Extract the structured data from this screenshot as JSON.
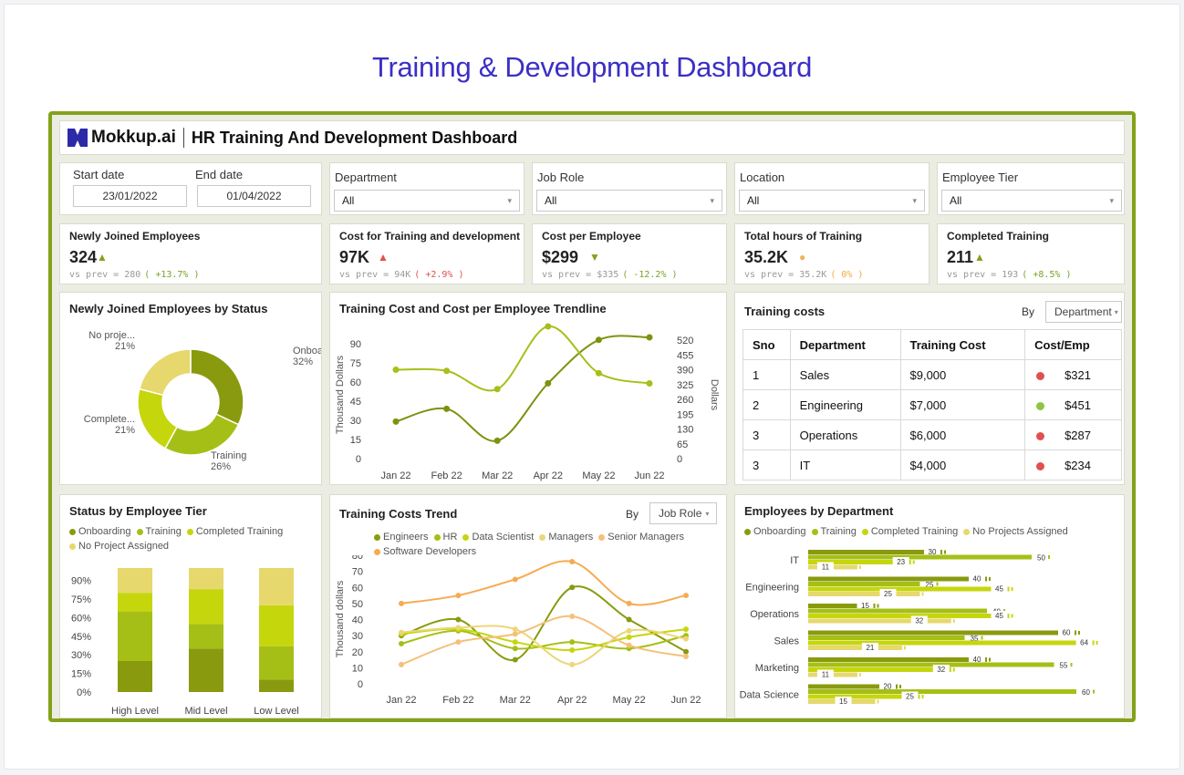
{
  "page_title": "Training & Development Dashboard",
  "header": {
    "brand": "Mokkup.ai",
    "title": "HR Training And Development Dashboard"
  },
  "filters": {
    "start_label": "Start date",
    "start_value": "23/01/2022",
    "end_label": "End date",
    "end_value": "01/04/2022",
    "department_label": "Department",
    "department_value": "All",
    "jobrole_label": "Job Role",
    "jobrole_value": "All",
    "location_label": "Location",
    "location_value": "All",
    "tier_label": "Employee Tier",
    "tier_value": "All"
  },
  "kpis": [
    {
      "title": "Newly Joined Employees",
      "value": "324",
      "indicator": "▲",
      "prev_label": "vs prev = ",
      "prev_value": "280",
      "change": "( +13.7% )",
      "ind_color": "#84a11a",
      "change_color": "#7aa323"
    },
    {
      "title": "Cost for Training and development",
      "value": "97K",
      "indicator": "▲",
      "prev_label": "vs prev = ",
      "prev_value": "94K",
      "change": "( +2.9% )",
      "ind_color": "#e05050",
      "change_color": "#e05050"
    },
    {
      "title": "Cost per Employee",
      "value": "$299",
      "indicator": "▼",
      "prev_label": "vs prev = ",
      "prev_value": "$335",
      "change": "( -12.2% )",
      "ind_color": "#84a11a",
      "change_color": "#7aa323"
    },
    {
      "title": "Total hours of Training",
      "value": "35.2K",
      "indicator": "●",
      "prev_label": "vs prev = ",
      "prev_value": "35.2K",
      "change": "( 0% )",
      "ind_color": "#f2b25a",
      "change_color": "#f2a93a"
    },
    {
      "title": "Completed Training",
      "value": "211",
      "indicator": "▲",
      "prev_label": "vs prev = ",
      "prev_value": "193",
      "change": "( +8.5% )",
      "ind_color": "#84a11a",
      "change_color": "#7aa323"
    }
  ],
  "donut_panel": {
    "title": "Newly Joined Employees by Status"
  },
  "trend_panel": {
    "title": "Training Cost and Cost per Employee Trendline"
  },
  "costs_panel": {
    "title": "Training costs",
    "by_label": "By",
    "by_value": "Department",
    "headers": [
      "Sno",
      "Department",
      "Training Cost",
      "Cost/Emp"
    ],
    "rows": [
      {
        "sno": "1",
        "dept": "Sales",
        "cost": "$9,000",
        "per": "$321",
        "color": "#e05050"
      },
      {
        "sno": "2",
        "dept": "Engineering",
        "cost": "$7,000",
        "per": "$451",
        "color": "#8dc63f"
      },
      {
        "sno": "3",
        "dept": "Operations",
        "cost": "$6,000",
        "per": "$287",
        "color": "#e05050"
      },
      {
        "sno": "3",
        "dept": "IT",
        "cost": "$4,000",
        "per": "$234",
        "color": "#e05050"
      }
    ]
  },
  "tier_panel": {
    "title": "Status by Employee Tier",
    "legend": [
      "Onboarding",
      "Training",
      "Completed Training",
      "No Project Assigned"
    ]
  },
  "costs_trend_panel": {
    "title": "Training Costs Trend",
    "by_label": "By",
    "by_value": "Job Role",
    "legend": [
      "Engineers",
      "HR",
      "Data Scientist",
      "Managers",
      "Senior Managers",
      "Software Developers"
    ]
  },
  "dept_panel": {
    "title": "Employees by Department",
    "legend": [
      "Onboarding",
      "Training",
      "Completed Training",
      "No Projects Assigned"
    ]
  },
  "colors": {
    "accent": "#84a11a",
    "olive": "#8a9a0f",
    "lime": "#bdd11a",
    "yellowgreen": "#a6bf16",
    "pale": "#e6d86c",
    "title": "#3b2fc4"
  },
  "chart_data": [
    {
      "type": "pie",
      "title": "Newly Joined Employees by Status",
      "categories": [
        "Onboardi...",
        "Training",
        "Complete...",
        "No proje..."
      ],
      "values": [
        32,
        26,
        21,
        21
      ],
      "labels": [
        "32%",
        "26%",
        "21%",
        "21%"
      ]
    },
    {
      "type": "line",
      "title": "Training Cost and Cost per Employee Trendline",
      "x": [
        "Jan 22",
        "Feb 22",
        "Mar 22",
        "Apr 22",
        "May 22",
        "Jun 22"
      ],
      "ylabel": "Thousand Dollars",
      "ylim": [
        0,
        100
      ],
      "yticks": [
        "0",
        "15",
        "30",
        "45",
        "60",
        "75",
        "90"
      ],
      "y2label": "Dollars",
      "y2lim": [
        0,
        560
      ],
      "y2ticks": [
        "0",
        "65",
        "130",
        "195",
        "260",
        "325",
        "390",
        "455",
        "520"
      ],
      "series": [
        {
          "axis": "left",
          "values": [
            29,
            39,
            14,
            59,
            93,
            95
          ]
        },
        {
          "axis": "right",
          "values": [
            390,
            385,
            305,
            580,
            375,
            330
          ]
        }
      ]
    },
    {
      "type": "bar",
      "stacked": true,
      "title": "Status by Employee Tier",
      "categories": [
        "High Level",
        "Mid Level",
        "Low Level"
      ],
      "yticks": [
        "0%",
        "15%",
        "30%",
        "45%",
        "60%",
        "75%",
        "90%"
      ],
      "ylim": [
        0,
        100
      ],
      "series": [
        {
          "name": "Onboarding",
          "values": [
            25,
            35,
            10
          ]
        },
        {
          "name": "Training",
          "values": [
            40,
            20,
            27
          ]
        },
        {
          "name": "Completed Training",
          "values": [
            15,
            28,
            33
          ]
        },
        {
          "name": "No Project Assigned",
          "values": [
            20,
            17,
            30
          ]
        }
      ]
    },
    {
      "type": "line",
      "title": "Training Costs Trend",
      "x": [
        "Jan 22",
        "Feb 22",
        "Mar 22",
        "Apr 22",
        "May 22",
        "Jun 22"
      ],
      "ylabel": "Thousand dollars",
      "ylim": [
        0,
        80
      ],
      "yticks": [
        "0",
        "10",
        "20",
        "30",
        "40",
        "50",
        "60",
        "70",
        "80"
      ],
      "series": [
        {
          "name": "Engineers",
          "values": [
            30,
            40,
            15,
            60,
            40,
            20
          ]
        },
        {
          "name": "HR",
          "values": [
            25,
            33,
            22,
            26,
            22,
            30
          ]
        },
        {
          "name": "Data Scientist",
          "values": [
            31,
            34,
            26,
            21,
            29,
            34
          ]
        },
        {
          "name": "Managers",
          "values": [
            32,
            35,
            34,
            12,
            33,
            28
          ]
        },
        {
          "name": "Senior Managers",
          "values": [
            12,
            26,
            31,
            42,
            24,
            17
          ]
        },
        {
          "name": "Software Developers",
          "values": [
            50,
            55,
            65,
            76,
            50,
            55
          ]
        }
      ]
    },
    {
      "type": "bar",
      "orientation": "horizontal",
      "title": "Employees by Department",
      "categories": [
        "IT",
        "Engineering",
        "Operations",
        "Sales",
        "Marketing",
        "Data Science"
      ],
      "series": [
        {
          "name": "Onboarding",
          "values": [
            30,
            40,
            15,
            60,
            40,
            20
          ]
        },
        {
          "name": "Training",
          "values": [
            50,
            25,
            40,
            35,
            55,
            60
          ]
        },
        {
          "name": "Completed Training",
          "values": [
            23,
            45,
            45,
            64,
            32,
            25
          ]
        },
        {
          "name": "No Projects Assigned",
          "values": [
            11,
            25,
            32,
            21,
            11,
            15
          ]
        }
      ]
    }
  ]
}
